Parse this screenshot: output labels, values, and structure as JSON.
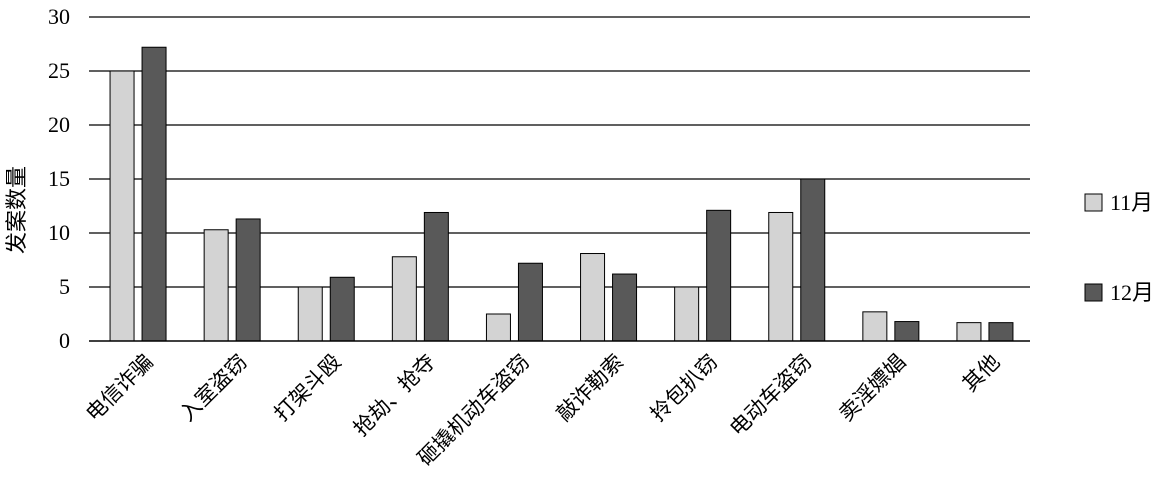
{
  "chart_data": {
    "type": "bar",
    "categories": [
      "电信诈骗",
      "入室盗窃",
      "打架斗殴",
      "抢劫、抢夺",
      "砸撬机动车盗窃",
      "敲诈勒索",
      "拎包扒窃",
      "电动车盗窃",
      "卖淫嫖娼",
      "其他"
    ],
    "series": [
      {
        "name": "11月",
        "color": "#d3d3d3",
        "values": [
          25,
          10.3,
          5,
          7.8,
          2.5,
          8.1,
          5,
          11.9,
          2.7,
          1.7
        ]
      },
      {
        "name": "12月",
        "color": "#595959",
        "values": [
          27.2,
          11.3,
          5.9,
          11.9,
          7.2,
          6.2,
          12.1,
          15,
          1.8,
          1.7
        ]
      }
    ],
    "ylabel": "发案数量",
    "xlabel": "",
    "ylim": [
      0,
      30
    ],
    "yticks": [
      0,
      5,
      10,
      15,
      20,
      25,
      30
    ],
    "grid": true,
    "legend_position": "right"
  }
}
